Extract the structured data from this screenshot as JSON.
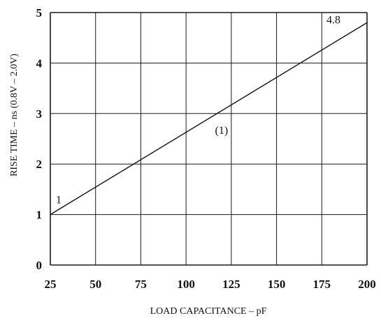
{
  "chart_data": {
    "type": "line",
    "title": "",
    "xlabel": "LOAD CAPACITANCE – pF",
    "ylabel": "RISE TIME – ns (0.8V – 2.0V)",
    "xlim": [
      25,
      200
    ],
    "ylim": [
      0,
      5
    ],
    "xticks": [
      25,
      50,
      75,
      100,
      125,
      150,
      175,
      200
    ],
    "yticks": [
      0,
      1,
      2,
      3,
      4,
      5
    ],
    "xtick_labels": [
      "25",
      "50",
      "75",
      "100",
      "125",
      "150",
      "175",
      "200"
    ],
    "ytick_labels": [
      "0",
      "1",
      "2",
      "3",
      "4",
      "5"
    ],
    "grid": true,
    "series": [
      {
        "x": [
          25,
          200
        ],
        "y": [
          1,
          4.8
        ]
      }
    ],
    "annotations": [
      {
        "text": "1",
        "x": 25,
        "y": 1
      },
      {
        "text": "4.8",
        "x": 200,
        "y": 4.8
      },
      {
        "text": "(1)",
        "x": 116,
        "y": 2.6
      }
    ]
  }
}
